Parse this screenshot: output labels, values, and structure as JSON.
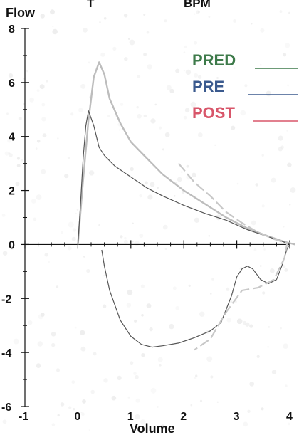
{
  "chart_data": {
    "type": "line",
    "title": "",
    "header_fragments": [
      "T",
      "BPM"
    ],
    "xlabel": "Volume",
    "ylabel": "Flow",
    "xlim": [
      -1,
      4
    ],
    "ylim": [
      -6,
      8
    ],
    "x_ticks": [
      "-1",
      "0",
      "1",
      "2",
      "3",
      "4"
    ],
    "y_ticks": [
      "8",
      "6",
      "4",
      "2",
      "0",
      "-2",
      "-4",
      "-6"
    ],
    "legend_position": "top-right",
    "legend": [
      {
        "label": "PRED",
        "color": "#3d7a4a"
      },
      {
        "label": "PRE",
        "color": "#3b5a8e"
      },
      {
        "label": "POST",
        "color": "#d8566a"
      }
    ],
    "series": [
      {
        "name": "PRED",
        "color": "#bdbdbd",
        "x": [
          0.0,
          0.1,
          0.2,
          0.3,
          0.4,
          0.5,
          0.6,
          0.8,
          1.0,
          1.3,
          1.6,
          2.0,
          2.4,
          2.8,
          3.2,
          3.6,
          3.9,
          4.1
        ],
        "y": [
          0.0,
          2.4,
          4.6,
          6.2,
          6.75,
          6.3,
          5.4,
          4.5,
          3.8,
          3.2,
          2.6,
          2.0,
          1.5,
          1.0,
          0.6,
          0.3,
          0.1,
          0.0
        ]
      },
      {
        "name": "PRE",
        "color": "#555555",
        "x": [
          0.0,
          0.05,
          0.1,
          0.15,
          0.2,
          0.3,
          0.4,
          0.5,
          0.7,
          1.0,
          1.3,
          1.6,
          2.0,
          2.4,
          2.8,
          3.2,
          3.5,
          3.8,
          3.95,
          4.0,
          3.95,
          3.85,
          3.75,
          3.6,
          3.45,
          3.3,
          3.2,
          3.1,
          3.0,
          2.9,
          2.7,
          2.5,
          2.2,
          1.9,
          1.6,
          1.4,
          1.2,
          1.0,
          0.8,
          0.6,
          0.5,
          0.45
        ],
        "y": [
          0.0,
          1.5,
          3.2,
          4.4,
          4.95,
          4.4,
          3.6,
          3.3,
          2.9,
          2.5,
          2.1,
          1.8,
          1.45,
          1.15,
          0.9,
          0.55,
          0.35,
          0.15,
          0.05,
          0.0,
          -0.15,
          -0.8,
          -1.3,
          -1.45,
          -1.3,
          -0.9,
          -0.8,
          -0.9,
          -1.2,
          -1.9,
          -2.9,
          -3.2,
          -3.45,
          -3.65,
          -3.75,
          -3.8,
          -3.7,
          -3.4,
          -2.8,
          -1.7,
          -0.8,
          -0.2
        ]
      },
      {
        "name": "POST",
        "color": "#c8c8c8",
        "x": [
          1.9,
          2.2,
          2.5,
          2.8,
          3.1,
          3.4,
          3.7,
          3.95,
          3.9,
          3.7,
          3.4,
          3.1,
          2.8,
          2.5,
          2.2
        ],
        "y": [
          3.0,
          2.3,
          1.8,
          1.2,
          0.8,
          0.45,
          0.2,
          0.05,
          -0.5,
          -1.3,
          -1.6,
          -1.7,
          -2.5,
          -3.5,
          -3.9
        ]
      }
    ]
  }
}
